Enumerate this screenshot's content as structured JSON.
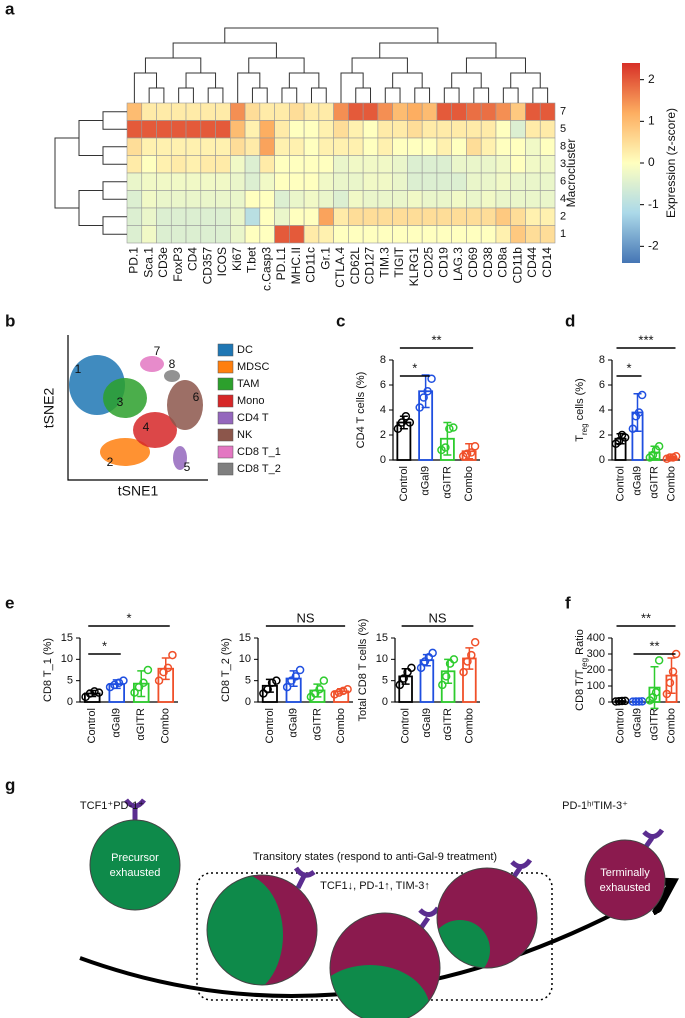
{
  "panel_labels": [
    "a",
    "b",
    "c",
    "d",
    "e",
    "f",
    "g"
  ],
  "chart_data": [
    {
      "type": "heatmap",
      "rows": [
        "7",
        "5",
        "8",
        "3",
        "6",
        "4",
        "2",
        "1"
      ],
      "columns": [
        "PD.1",
        "Sca.1",
        "CD3e",
        "FoxP3",
        "CD4",
        "CD357",
        "ICOS",
        "Ki67",
        "T.bet",
        "c.Casp3",
        "PD.L1",
        "MHC.II",
        "CD11c",
        "Gr.1",
        "CTLA.4",
        "CD62L",
        "CD127",
        "TIM.3",
        "TIGIT",
        "KLRG1",
        "CD25",
        "CD19",
        "LAG.3",
        "CD69",
        "CD38",
        "CD8a",
        "CD11b",
        "CD44",
        "CD14"
      ],
      "values": [
        [
          1.0,
          0.3,
          0.3,
          0.3,
          0.3,
          0.3,
          0.3,
          1.5,
          0.5,
          0.3,
          0.3,
          0.5,
          0.3,
          0.3,
          1.5,
          2.0,
          2.0,
          1.5,
          1.0,
          1.2,
          1.0,
          2.0,
          2.0,
          1.8,
          1.8,
          1.5,
          0.8,
          2.0,
          2.0
        ],
        [
          2.0,
          2.0,
          2.0,
          2.0,
          2.0,
          2.0,
          2.0,
          1.0,
          0.2,
          1.2,
          0.3,
          0,
          0,
          0.2,
          0.5,
          0.2,
          0,
          0.3,
          0.3,
          0.5,
          0.3,
          0.3,
          0.3,
          0.3,
          0.3,
          0,
          -0.5,
          0.3,
          0.3
        ],
        [
          0.5,
          0.2,
          0.2,
          0.2,
          0.2,
          0.2,
          0.2,
          0.5,
          0.3,
          1.3,
          0.2,
          0.2,
          0,
          0.2,
          0.2,
          0.2,
          0,
          0.2,
          0,
          0,
          0,
          0.2,
          0,
          0.5,
          0.2,
          0,
          0,
          -0.2,
          0
        ],
        [
          0.3,
          0,
          0.2,
          0.3,
          0.2,
          0.3,
          0.3,
          -0.2,
          -0.5,
          0.3,
          0,
          0,
          0,
          0,
          -0.3,
          -0.2,
          -0.2,
          -0.2,
          -0.3,
          -0.5,
          -0.5,
          -0.5,
          -0.3,
          -0.3,
          -0.3,
          -0.2,
          0,
          -0.2,
          -0.2
        ],
        [
          -0.3,
          -0.2,
          -0.2,
          -0.2,
          -0.2,
          -0.2,
          -0.2,
          -0.3,
          -0.5,
          -0.2,
          0,
          0,
          0,
          -0.2,
          -0.3,
          -0.3,
          -0.2,
          -0.2,
          -0.3,
          -0.5,
          -0.5,
          -0.5,
          -0.5,
          -0.3,
          -0.3,
          -0.2,
          -0.3,
          -0.3,
          -0.3
        ],
        [
          -0.5,
          -0.2,
          -0.3,
          -0.3,
          -0.3,
          -0.3,
          -0.3,
          -0.3,
          0,
          0,
          -0.5,
          -0.3,
          -0.2,
          -0.3,
          -0.5,
          -0.2,
          -0.3,
          -0.3,
          -0.3,
          -0.2,
          -0.3,
          -0.3,
          -0.2,
          -0.3,
          -0.2,
          -0.3,
          -0.3,
          -0.3,
          -0.3
        ],
        [
          -0.5,
          -0.3,
          -0.5,
          -0.5,
          -0.5,
          -0.5,
          -0.5,
          -0.3,
          -1.0,
          0,
          -0.3,
          0,
          0,
          1.3,
          0.3,
          0.5,
          0.5,
          0.5,
          0.5,
          0.5,
          0.5,
          0.5,
          0.5,
          0.5,
          0.5,
          0.8,
          0.5,
          0.2,
          0.2
        ],
        [
          -0.5,
          -0.2,
          -0.5,
          -0.5,
          -0.5,
          -0.5,
          -0.5,
          -0.3,
          0,
          0,
          2.0,
          2.0,
          0.3,
          0.2,
          0,
          0,
          0,
          0,
          0,
          0,
          0,
          0,
          0,
          0,
          0,
          0.2,
          0.8,
          0.5,
          0.5
        ]
      ],
      "row_axis_label": "Macrocluster",
      "colorbar": {
        "label": "Expression (z-score)",
        "lim": [
          -2.4,
          2.4
        ],
        "ticks": [
          2,
          1,
          0,
          -1,
          -2
        ]
      }
    },
    {
      "type": "tsne",
      "xlabel": "tSNE1",
      "ylabel": "tSNE2",
      "cluster_labels": [
        "1",
        "2",
        "3",
        "4",
        "5",
        "6",
        "7",
        "8"
      ],
      "legend": [
        {
          "name": "DC",
          "color": "#1f77b4"
        },
        {
          "name": "MDSC",
          "color": "#ff7f0e"
        },
        {
          "name": "TAM",
          "color": "#2ca02c"
        },
        {
          "name": "Mono",
          "color": "#d62728"
        },
        {
          "name": "CD4 T",
          "color": "#9467bd"
        },
        {
          "name": "NK",
          "color": "#8c564b"
        },
        {
          "name": "CD8 T_1",
          "color": "#e377c2"
        },
        {
          "name": "CD8 T_2",
          "color": "#7f7f7f"
        }
      ]
    },
    {
      "type": "dotbar",
      "ylabel": [
        {
          "text": "CD4 T cells (%)"
        }
      ],
      "categories": [
        "Control",
        "αGal9",
        "αGITR",
        "Combo"
      ],
      "colors": [
        "#000000",
        "#1f4fe0",
        "#2ecc2e",
        "#f0502a"
      ],
      "values": [
        3,
        5.5,
        1.7,
        0.7
      ],
      "errors": [
        0.5,
        1.3,
        1.3,
        0.6
      ],
      "points": [
        [
          2.5,
          3,
          3.5,
          3
        ],
        [
          4.2,
          5,
          5.5,
          6.5
        ],
        [
          0.8,
          1,
          2.5,
          2.6
        ],
        [
          0.3,
          0.5,
          0.6,
          1.1
        ]
      ],
      "ylim": [
        0,
        8
      ],
      "yticks": [
        0,
        2,
        4,
        6,
        8
      ],
      "significance": [
        {
          "label": "*",
          "groups": [
            "Control",
            "αGal9"
          ]
        },
        {
          "label": "**",
          "groups": [
            "Control",
            "Combo"
          ]
        }
      ]
    },
    {
      "type": "dotbar",
      "ylabel": [
        {
          "text": "T"
        },
        {
          "text": "reg",
          "sub": true
        },
        {
          "text": " cells (%)"
        }
      ],
      "categories": [
        "Control",
        "αGal9",
        "αGITR",
        "Combo"
      ],
      "colors": [
        "#000000",
        "#1f4fe0",
        "#2ecc2e",
        "#f0502a"
      ],
      "values": [
        1.7,
        3.8,
        0.6,
        0.2
      ],
      "errors": [
        0.4,
        1.5,
        0.5,
        0.1
      ],
      "points": [
        [
          1.3,
          1.5,
          2,
          1.8
        ],
        [
          2.5,
          3.5,
          3.8,
          5.2
        ],
        [
          0.2,
          0.4,
          0.8,
          1.1
        ],
        [
          0.1,
          0.2,
          0.2,
          0.3
        ]
      ],
      "ylim": [
        0,
        8
      ],
      "yticks": [
        0,
        2,
        4,
        6,
        8
      ],
      "significance": [
        {
          "label": "*",
          "groups": [
            "Control",
            "αGal9"
          ]
        },
        {
          "label": "***",
          "groups": [
            "Control",
            "Combo"
          ]
        }
      ]
    },
    {
      "type": "dotbar",
      "ylabel": [
        {
          "text": "CD8 T_1 (%)"
        }
      ],
      "categories": [
        "Control",
        "αGal9",
        "αGITR",
        "Combo"
      ],
      "colors": [
        "#000000",
        "#1f4fe0",
        "#2ecc2e",
        "#f0502a"
      ],
      "values": [
        2,
        4.2,
        4.3,
        7.8
      ],
      "errors": [
        0.7,
        1,
        3,
        2.5
      ],
      "points": [
        [
          1.2,
          2,
          2.5,
          2.2
        ],
        [
          3.5,
          4,
          4.5,
          5
        ],
        [
          2.2,
          3.5,
          4.5,
          7.5
        ],
        [
          5,
          7,
          8,
          11
        ]
      ],
      "ylim": [
        0,
        15
      ],
      "yticks": [
        0,
        5,
        10,
        15
      ],
      "significance": [
        {
          "label": "*",
          "groups": [
            "Control",
            "αGal9"
          ]
        },
        {
          "label": "*",
          "groups": [
            "Control",
            "Combo"
          ]
        }
      ]
    },
    {
      "type": "dotbar",
      "ylabel": [
        {
          "text": "CD8 T_2 (%)"
        }
      ],
      "categories": [
        "Control",
        "αGal9",
        "αGITR",
        "Combo"
      ],
      "colors": [
        "#000000",
        "#1f4fe0",
        "#2ecc2e",
        "#f0502a"
      ],
      "values": [
        3.8,
        5.5,
        2.7,
        2.5
      ],
      "errors": [
        1.5,
        1.8,
        1.5,
        0.6
      ],
      "points": [
        [
          2,
          3,
          4.5,
          5
        ],
        [
          3.5,
          5,
          6,
          7.5
        ],
        [
          1.2,
          2,
          3,
          5
        ],
        [
          1.8,
          2.2,
          2.6,
          3
        ]
      ],
      "ylim": [
        0,
        15
      ],
      "yticks": [
        0,
        5,
        10,
        15
      ],
      "significance": [
        {
          "label": "NS",
          "groups": [
            "Control",
            "Combo"
          ]
        }
      ]
    },
    {
      "type": "dotbar",
      "ylabel": [
        {
          "text": "Total CD8 T cells (%)"
        }
      ],
      "categories": [
        "Control",
        "αGal9",
        "αGITR",
        "Combo"
      ],
      "colors": [
        "#000000",
        "#1f4fe0",
        "#2ecc2e",
        "#f0502a"
      ],
      "values": [
        6,
        9.8,
        7.2,
        10.2
      ],
      "errors": [
        1.8,
        1.3,
        2.8,
        2.5
      ],
      "points": [
        [
          4,
          5.5,
          7,
          8
        ],
        [
          8,
          9.5,
          10.5,
          11.5
        ],
        [
          4,
          6,
          9,
          10
        ],
        [
          7,
          9.5,
          11,
          14
        ]
      ],
      "ylim": [
        0,
        15
      ],
      "yticks": [
        0,
        5,
        10,
        15
      ],
      "significance": [
        {
          "label": "NS",
          "groups": [
            "Control",
            "Combo"
          ]
        }
      ]
    },
    {
      "type": "dotbar",
      "ylabel": [
        {
          "text": "CD8 T/T"
        },
        {
          "text": "reg",
          "sub": true
        },
        {
          "text": " Ratio"
        }
      ],
      "categories": [
        "Control",
        "αGal9",
        "αGITR",
        "Combo"
      ],
      "colors": [
        "#000000",
        "#1f4fe0",
        "#2ecc2e",
        "#f0502a"
      ],
      "values": [
        5,
        3,
        90,
        165
      ],
      "errors": [
        2,
        2,
        130,
        110
      ],
      "points": [
        [
          3,
          5,
          6,
          7
        ],
        [
          2,
          3,
          3,
          4
        ],
        [
          10,
          30,
          60,
          260
        ],
        [
          50,
          120,
          190,
          300
        ]
      ],
      "ylim": [
        0,
        400
      ],
      "yticks": [
        0,
        100,
        200,
        300,
        400
      ],
      "significance": [
        {
          "label": "**",
          "groups": [
            "αGal9",
            "Combo"
          ]
        },
        {
          "label": "**",
          "groups": [
            "Control",
            "Combo"
          ]
        }
      ]
    }
  ],
  "diagram": {
    "left_state": "TCF1⁺PD-1⁺",
    "right_state": "PD-1ʰⁱTIM-3⁺",
    "box_title": "Transitory states (respond to anti-Gal-9 treatment)",
    "box_markers": "TCF1↓, PD-1↑, TIM-3↑",
    "precursor": [
      "Precursor",
      "exhausted"
    ],
    "terminal": [
      "Terminally",
      "exhausted"
    ]
  }
}
